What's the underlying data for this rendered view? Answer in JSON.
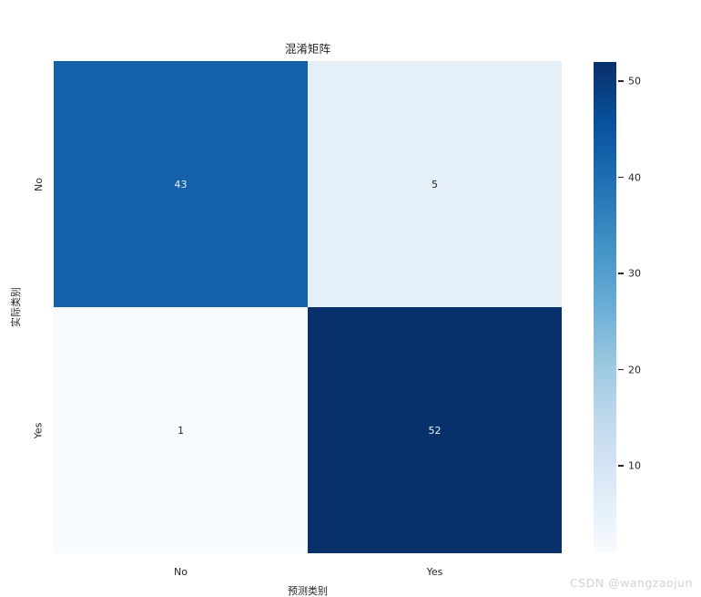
{
  "figure": {
    "title": "混淆矩阵",
    "xlabel": "预测类别",
    "ylabel": "实际类别",
    "watermark": "CSDN @wangzaojun"
  },
  "chart_data": {
    "type": "heatmap",
    "title": "混淆矩阵",
    "xlabel": "预测类别",
    "ylabel": "实际类别",
    "x_categories": [
      "No",
      "Yes"
    ],
    "y_categories": [
      "No",
      "Yes"
    ],
    "values": [
      [
        43,
        5
      ],
      [
        1,
        52
      ]
    ],
    "vmin": 1,
    "vmax": 52,
    "colormap": "Blues",
    "legend_position": "right-colorbar",
    "grid": false,
    "colorbar_ticks": [
      50,
      40,
      30,
      20,
      10
    ],
    "cells": [
      {
        "actual": "No",
        "predicted": "No",
        "value": 43,
        "bg": "#1561a9",
        "fg": "#eaf1f8"
      },
      {
        "actual": "No",
        "predicted": "Yes",
        "value": 5,
        "bg": "#e5eff8",
        "fg": "#262626"
      },
      {
        "actual": "Yes",
        "predicted": "No",
        "value": 1,
        "bg": "#f7fbff",
        "fg": "#262626"
      },
      {
        "actual": "Yes",
        "predicted": "Yes",
        "value": 52,
        "bg": "#08306b",
        "fg": "#eaf1f8"
      }
    ],
    "colorbar_gradient": [
      "#08306b",
      "#08519c",
      "#2171b5",
      "#4292c6",
      "#6baed6",
      "#9ecae1",
      "#c6dbef",
      "#deebf7",
      "#f7fbff"
    ],
    "text_color": "#262626",
    "watermark_color": "#d2d2d2"
  }
}
